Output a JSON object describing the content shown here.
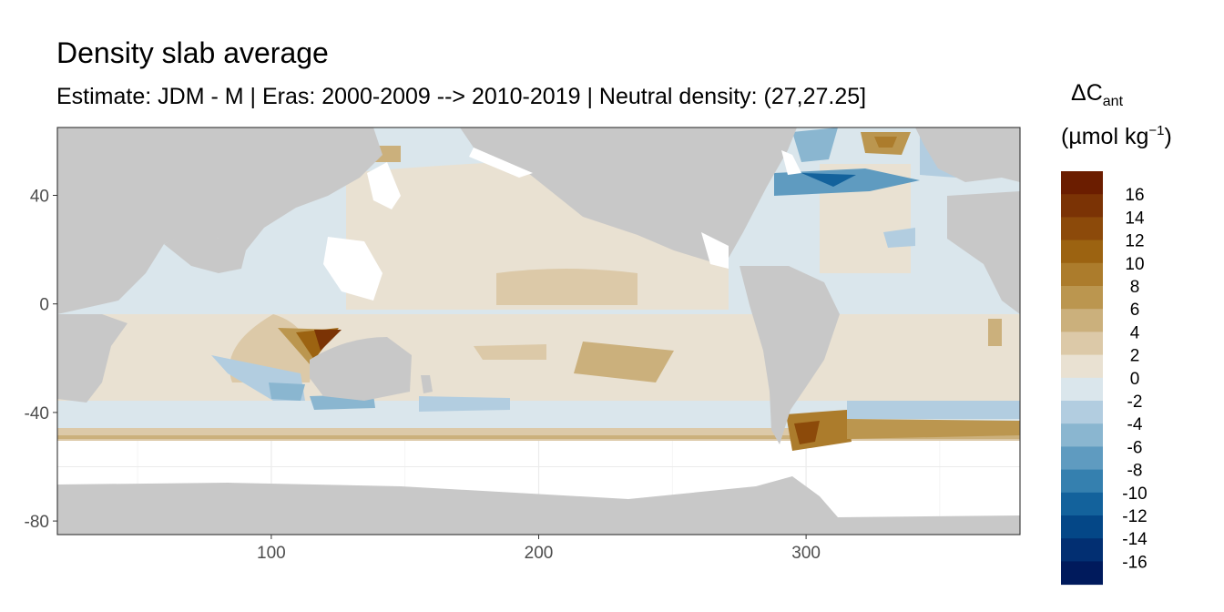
{
  "chart_data": {
    "type": "heatmap",
    "title": "Density slab average",
    "subtitle": "Estimate: JDM - M | Eras: 2000-2009 --> 2010-2019 | Neutral density: (27,27.25]",
    "xlabel": "",
    "ylabel": "",
    "xlim": [
      20,
      380
    ],
    "ylim": [
      -85,
      65
    ],
    "x_ticks": [
      {
        "value": 100,
        "label": "100"
      },
      {
        "value": 200,
        "label": "200"
      },
      {
        "value": 300,
        "label": "300"
      }
    ],
    "y_ticks": [
      {
        "value": 40,
        "label": "40"
      },
      {
        "value": 0,
        "label": "0"
      },
      {
        "value": -40,
        "label": "-40"
      },
      {
        "value": -80,
        "label": "-80"
      }
    ],
    "legend": {
      "title_main": "ΔC",
      "title_sub": "ant",
      "unit_prefix": "(µmol kg",
      "unit_exp": "−1",
      "unit_suffix": ")",
      "placement": "right",
      "bins": [
        {
          "label": "16",
          "color": "#6b1d00"
        },
        {
          "label": "14",
          "color": "#7b3305"
        },
        {
          "label": "12",
          "color": "#8c4a0a"
        },
        {
          "label": "10",
          "color": "#9c6311"
        },
        {
          "label": "8",
          "color": "#ac7c2c"
        },
        {
          "label": "6",
          "color": "#bb964f"
        },
        {
          "label": "4",
          "color": "#cbb07c"
        },
        {
          "label": "2",
          "color": "#dcc9a8"
        },
        {
          "label": "0",
          "color": "#e9e1d2"
        },
        {
          "label": "-2",
          "color": "#dae6ec"
        },
        {
          "label": "-4",
          "color": "#b2cde0"
        },
        {
          "label": "-6",
          "color": "#8ab6d0"
        },
        {
          "label": "-8",
          "color": "#5f9bc0"
        },
        {
          "label": "-10",
          "color": "#3580af"
        },
        {
          "label": "-12",
          "color": "#13629c"
        },
        {
          "label": "-14",
          "color": "#044787"
        },
        {
          "label": "-16",
          "color": "#022f72"
        },
        {
          "label": "",
          "color": "#001a5c"
        }
      ]
    },
    "land_color": "#c8c8c8",
    "nodata_color": "#ffffff",
    "grid": true
  }
}
